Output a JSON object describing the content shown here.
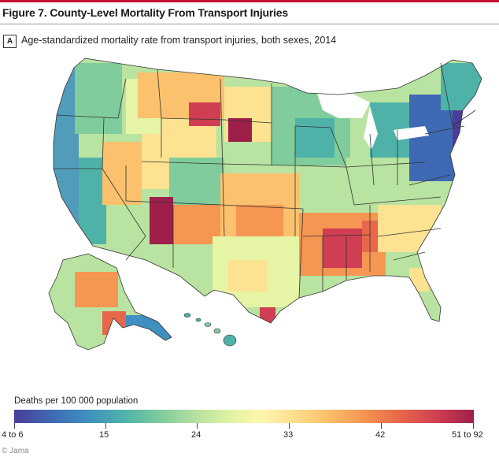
{
  "figure": {
    "title": "Figure 7. County-Level Mortality From Transport Injuries",
    "panel_letter": "A",
    "panel_caption": "Age-standardized mortality rate from transport injuries, both sexes, 2014"
  },
  "legend": {
    "title": "Deaths per 100 000 population",
    "labels": [
      "4 to 6",
      "15",
      "24",
      "33",
      "42",
      "51 to 92"
    ],
    "colors": [
      "#4c3e98",
      "#3f8fc0",
      "#80cc9c",
      "#e6f4a5",
      "#fde291",
      "#f59652",
      "#cf3e52",
      "#9e1f4a"
    ]
  },
  "credit": "© Jama",
  "map": {
    "regions": [
      {
        "name": "pacific-northwest",
        "color": "#4f9fc0"
      },
      {
        "name": "california-coast",
        "color": "#3f8fc0"
      },
      {
        "name": "nevada",
        "color": "#f59652"
      },
      {
        "name": "new-mexico-northwest",
        "color": "#9e1f4a"
      },
      {
        "name": "montana-north",
        "color": "#cf3e52"
      },
      {
        "name": "south-dakota",
        "color": "#9e1f4a"
      },
      {
        "name": "great-plains",
        "color": "#fbc16c"
      },
      {
        "name": "deep-south",
        "color": "#e7674a"
      },
      {
        "name": "upper-midwest",
        "color": "#4fb2a9"
      },
      {
        "name": "northeast",
        "color": "#3e69b3"
      },
      {
        "name": "florida",
        "color": "#b9e3a0"
      },
      {
        "name": "alaska",
        "color": "#f59652"
      },
      {
        "name": "hawaii",
        "color": "#4fb2a9"
      }
    ]
  }
}
